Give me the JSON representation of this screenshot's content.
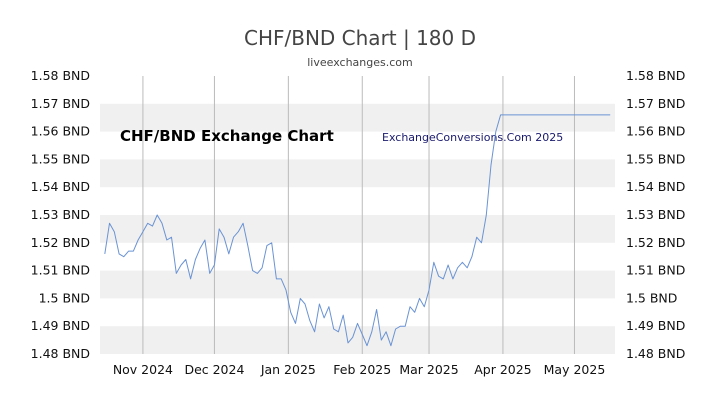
{
  "header": {
    "title": "CHF/BND Chart | 180 D",
    "subtitle": "liveexchanges.com"
  },
  "overlay": {
    "left_label": "CHF/BND Exchange Chart",
    "right_label": "ExchangeConversions.Com 2025"
  },
  "colors": {
    "line": "#6a93d4",
    "band": "#f0f0f0",
    "grid": "#bbbbbb"
  },
  "chart_data": {
    "type": "line",
    "title": "CHF/BND Chart | 180 D",
    "ylim": [
      1.48,
      1.58
    ],
    "y_ticks": [
      1.58,
      1.57,
      1.56,
      1.55,
      1.54,
      1.53,
      1.52,
      1.51,
      1.5,
      1.49,
      1.48
    ],
    "y_tick_labels": [
      "1.58 BND",
      "1.57 BND",
      "1.56 BND",
      "1.55 BND",
      "1.54 BND",
      "1.53 BND",
      "1.52 BND",
      "1.51 BND",
      "1.5 BND",
      "1.49 BND",
      "1.48 BND"
    ],
    "xlim": [
      "2024-10-14",
      "2025-05-18"
    ],
    "x_ticks": [
      {
        "date": "2024-11-01",
        "label": "Nov 2024"
      },
      {
        "date": "2024-12-01",
        "label": "Dec 2024"
      },
      {
        "date": "2025-01-01",
        "label": "Jan 2025"
      },
      {
        "date": "2025-02-01",
        "label": "Feb 2025"
      },
      {
        "date": "2025-03-01",
        "label": "Mar 2025"
      },
      {
        "date": "2025-04-01",
        "label": "Apr 2025"
      },
      {
        "date": "2025-05-01",
        "label": "May 2025"
      }
    ],
    "grid": "vertical lines at month ticks, alternating horizontal bands",
    "series": [
      {
        "x": [
          "2024-10-16",
          "2024-10-18",
          "2024-10-20",
          "2024-10-22",
          "2024-10-24",
          "2024-10-26",
          "2024-10-28",
          "2024-10-30",
          "2024-11-01",
          "2024-11-03",
          "2024-11-05",
          "2024-11-07",
          "2024-11-09",
          "2024-11-11",
          "2024-11-13",
          "2024-11-15",
          "2024-11-17",
          "2024-11-19",
          "2024-11-21",
          "2024-11-23",
          "2024-11-25",
          "2024-11-27",
          "2024-11-29",
          "2024-12-01",
          "2024-12-03",
          "2024-12-05",
          "2024-12-07",
          "2024-12-09",
          "2024-12-11",
          "2024-12-13",
          "2024-12-15",
          "2024-12-17",
          "2024-12-19",
          "2024-12-21",
          "2024-12-23",
          "2024-12-25",
          "2024-12-27",
          "2024-12-29",
          "2024-12-31",
          "2025-01-02",
          "2025-01-04",
          "2025-01-06",
          "2025-01-08",
          "2025-01-10",
          "2025-01-12",
          "2025-01-14",
          "2025-01-16",
          "2025-01-18",
          "2025-01-20",
          "2025-01-22",
          "2025-01-24",
          "2025-01-26",
          "2025-01-28",
          "2025-01-30",
          "2025-02-01",
          "2025-02-03",
          "2025-02-05",
          "2025-02-07",
          "2025-02-09",
          "2025-02-11",
          "2025-02-13",
          "2025-02-15",
          "2025-02-17",
          "2025-02-19",
          "2025-02-21",
          "2025-02-23",
          "2025-02-25",
          "2025-02-27",
          "2025-03-01",
          "2025-03-03",
          "2025-03-05",
          "2025-03-07",
          "2025-03-09",
          "2025-03-11",
          "2025-03-13",
          "2025-03-15",
          "2025-03-17",
          "2025-03-19",
          "2025-03-21",
          "2025-03-23",
          "2025-03-25",
          "2025-03-27",
          "2025-03-29",
          "2025-03-31",
          "2025-04-02",
          "2025-04-04",
          "2025-04-06",
          "2025-04-10",
          "2025-04-20",
          "2025-05-01",
          "2025-05-10",
          "2025-05-16"
        ],
        "values": [
          1.516,
          1.527,
          1.524,
          1.516,
          1.515,
          1.517,
          1.517,
          1.521,
          1.524,
          1.527,
          1.526,
          1.53,
          1.527,
          1.521,
          1.522,
          1.509,
          1.512,
          1.514,
          1.507,
          1.514,
          1.518,
          1.521,
          1.509,
          1.512,
          1.525,
          1.522,
          1.516,
          1.522,
          1.524,
          1.527,
          1.519,
          1.51,
          1.509,
          1.511,
          1.519,
          1.52,
          1.507,
          1.507,
          1.503,
          1.495,
          1.491,
          1.5,
          1.498,
          1.492,
          1.488,
          1.498,
          1.493,
          1.497,
          1.489,
          1.488,
          1.494,
          1.484,
          1.486,
          1.491,
          1.487,
          1.483,
          1.488,
          1.496,
          1.485,
          1.488,
          1.483,
          1.489,
          1.49,
          1.49,
          1.497,
          1.495,
          1.5,
          1.497,
          1.503,
          1.513,
          1.508,
          1.507,
          1.512,
          1.507,
          1.511,
          1.513,
          1.511,
          1.515,
          1.522,
          1.52,
          1.53,
          1.548,
          1.56,
          1.566,
          1.566,
          1.566,
          1.566,
          1.566,
          1.566,
          1.566,
          1.566,
          1.566
        ]
      }
    ]
  }
}
